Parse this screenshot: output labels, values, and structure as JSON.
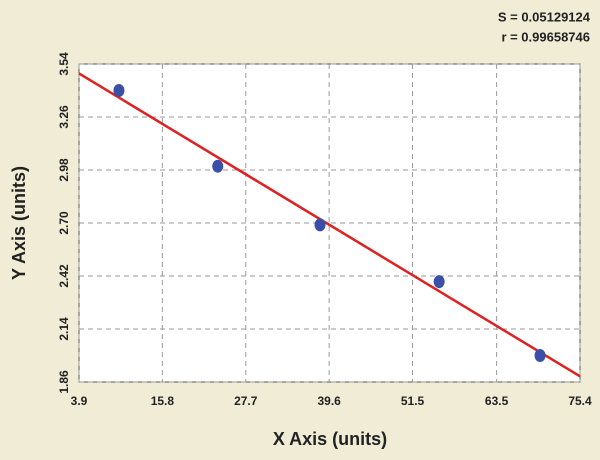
{
  "chart_data": {
    "type": "scatter",
    "annotations": [
      "S = 0.05129124",
      "r = 0.99658746"
    ],
    "xlabel": "X Axis (units)",
    "ylabel": "Y Axis (units)",
    "xlim": [
      3.9,
      75.4
    ],
    "xticks": [
      3.9,
      15.8,
      27.7,
      39.6,
      51.5,
      63.5,
      75.4
    ],
    "ylim": [
      1.86,
      3.54
    ],
    "yticks": [
      1.86,
      2.14,
      2.42,
      {
        "value": 2.7,
        "label": "2.70"
      },
      2.98,
      3.26,
      3.54
    ],
    "grid": true,
    "points": {
      "x": [
        9.6,
        23.7,
        38.3,
        55.3,
        69.7
      ],
      "y": [
        3.4,
        3.0,
        2.69,
        2.39,
        2.0
      ],
      "color": "#3a4fa8"
    },
    "fit": {
      "x": [
        3.9,
        75.4
      ],
      "y": [
        3.49,
        1.89
      ],
      "color": "#e02020"
    }
  }
}
